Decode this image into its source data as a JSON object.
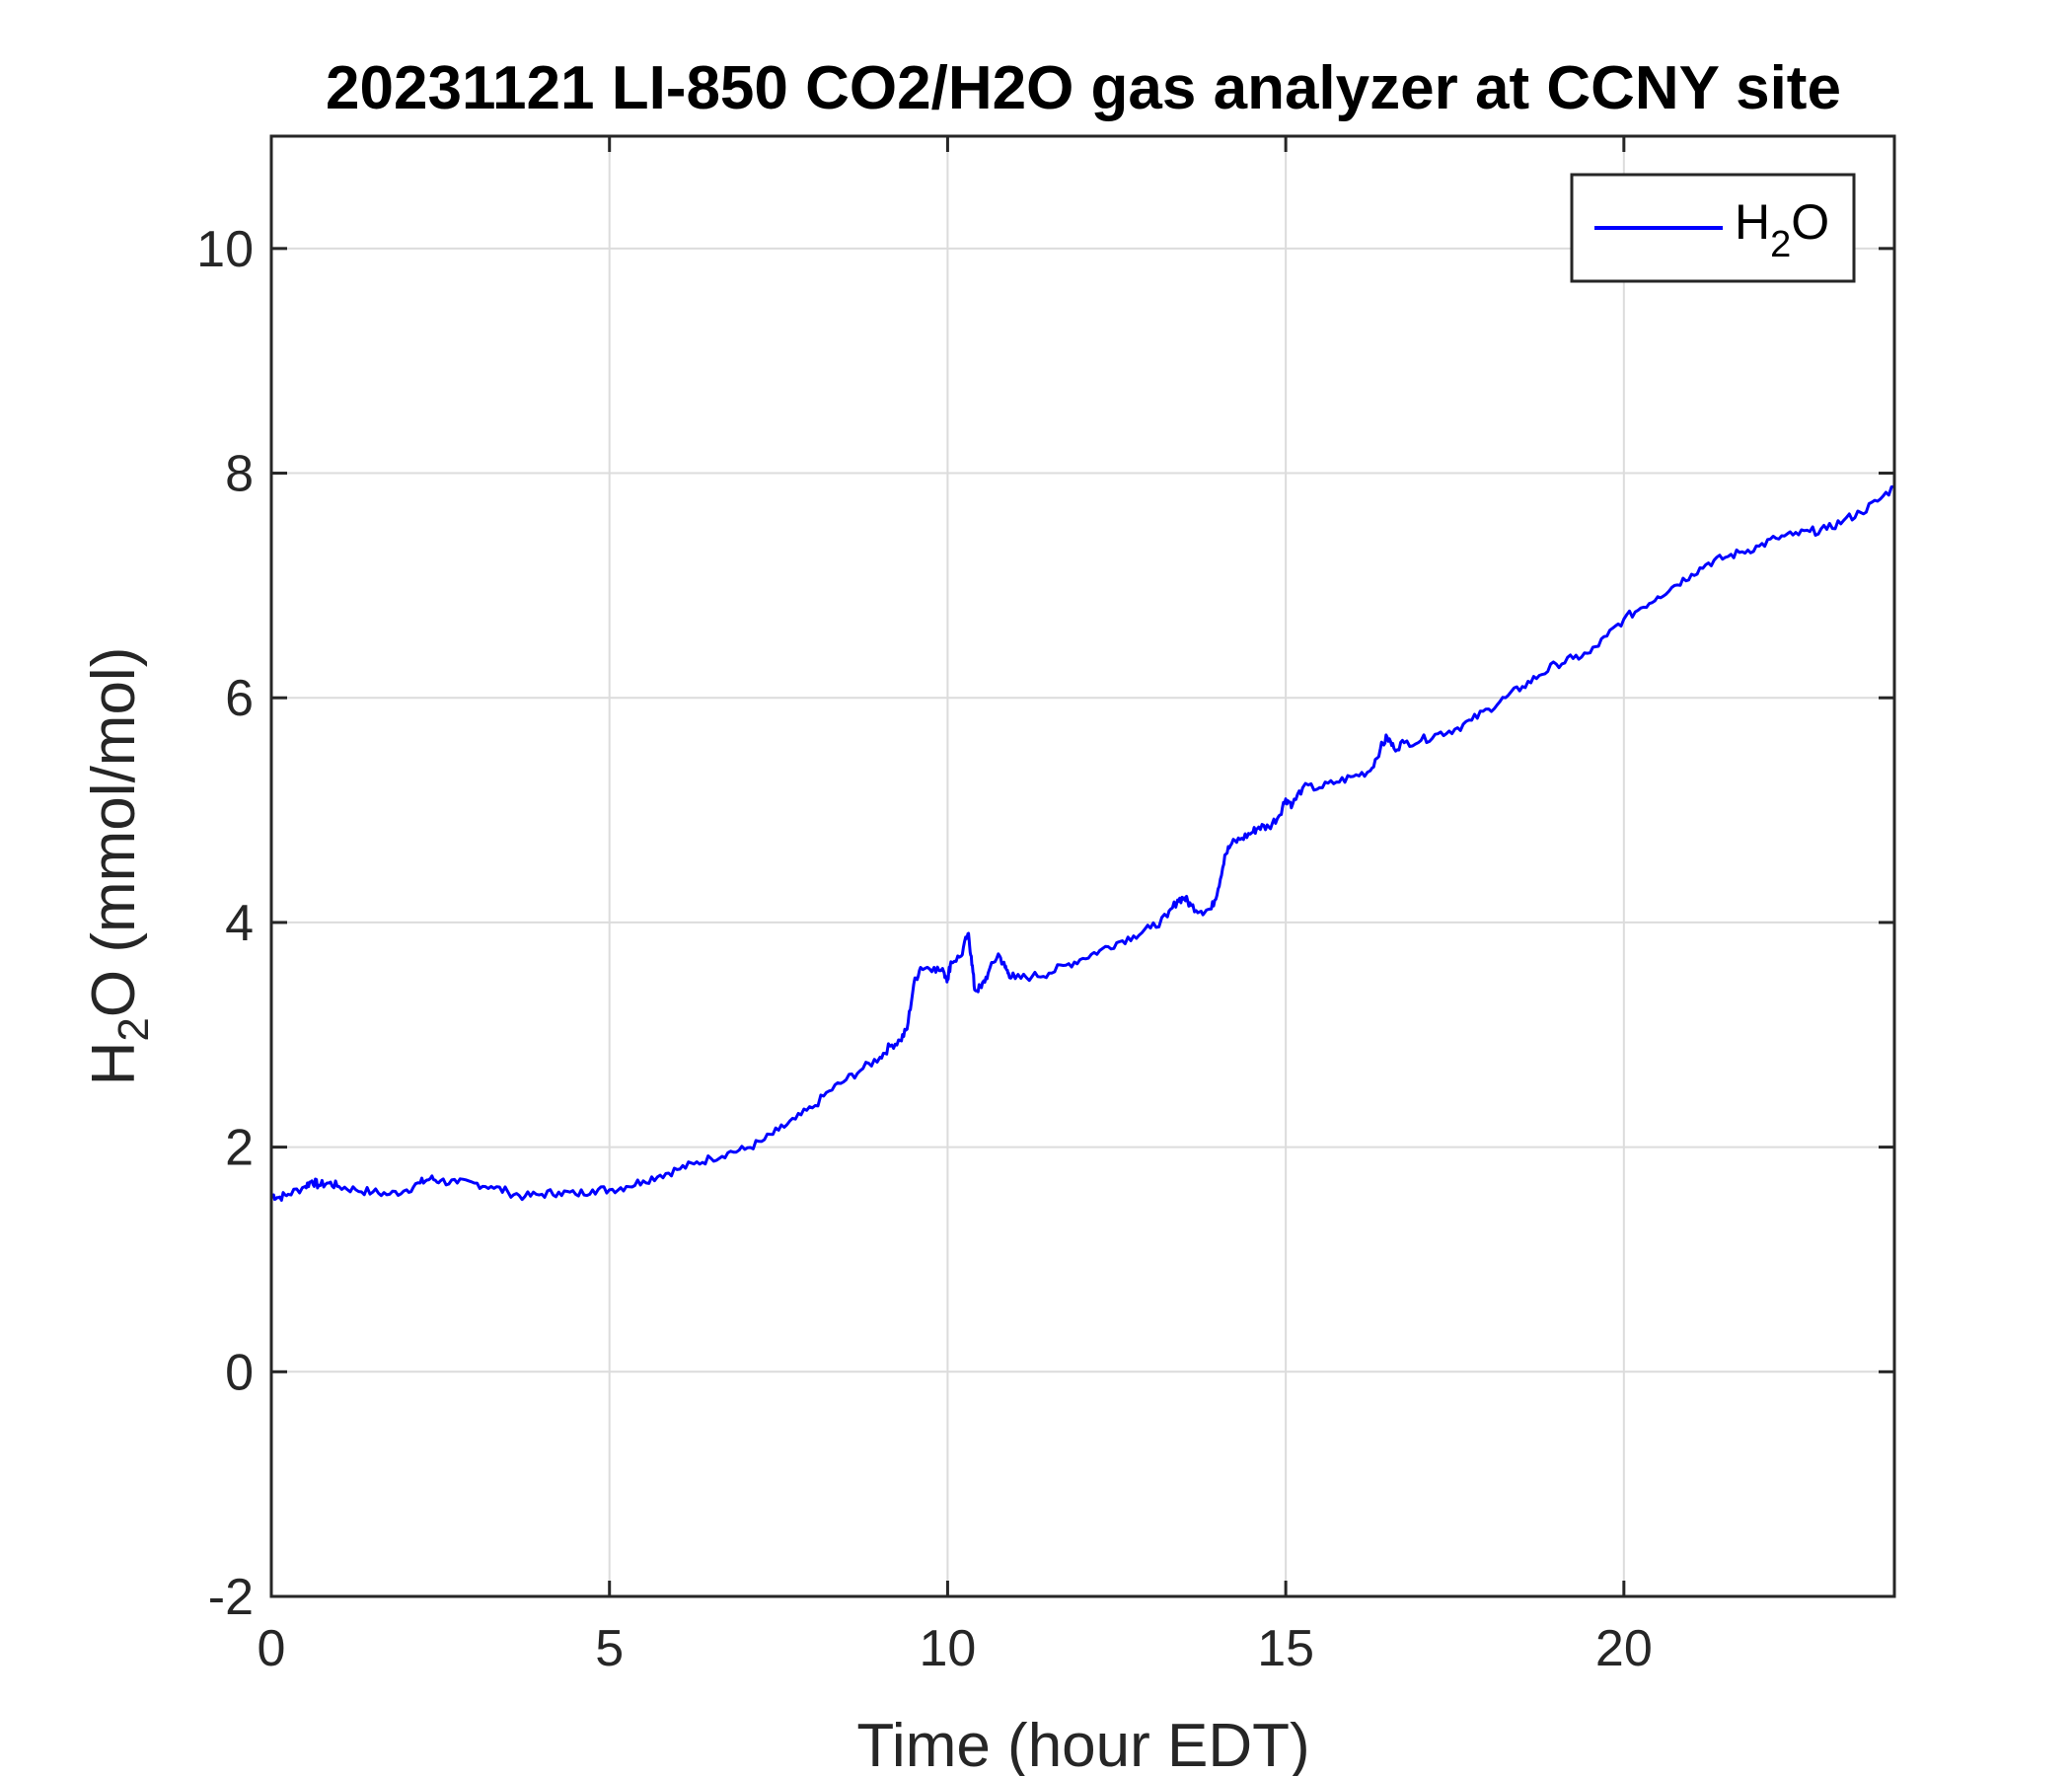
{
  "chart_data": {
    "type": "line",
    "title": "20231121 LI-850 CO2/H2O gas analyzer at CCNY site",
    "xlabel": "Time (hour EDT)",
    "ylabel": {
      "main": "H",
      "sub": "2",
      "rest": "O (mmol/mol)"
    },
    "xlim": [
      0,
      24
    ],
    "ylim": [
      -2,
      11
    ],
    "xticks": [
      "0",
      "5",
      "10",
      "15",
      "20"
    ],
    "yticks": [
      "-2",
      "0",
      "2",
      "4",
      "6",
      "8",
      "10"
    ],
    "grid": true,
    "legend_position": "top-right",
    "series": [
      {
        "name": {
          "main": "H",
          "sub": "2",
          "rest": "O"
        },
        "color": "#0000ff",
        "x": [
          0,
          0.1,
          0.25,
          0.5,
          0.6,
          0.7,
          0.85,
          1.0,
          1.25,
          1.5,
          1.75,
          2.0,
          2.2,
          2.35,
          2.5,
          2.75,
          3.0,
          3.25,
          3.5,
          3.75,
          4.0,
          4.25,
          4.5,
          4.75,
          5.0,
          5.25,
          5.5,
          5.75,
          6.0,
          6.25,
          6.5,
          6.75,
          7.0,
          7.25,
          7.5,
          7.75,
          8.0,
          8.25,
          8.5,
          8.75,
          9.0,
          9.15,
          9.3,
          9.4,
          9.5,
          9.6,
          9.8,
          9.95,
          10.0,
          10.05,
          10.2,
          10.3,
          10.35,
          10.4,
          10.5,
          10.6,
          10.75,
          10.85,
          10.9,
          11.0,
          11.25,
          11.5,
          11.75,
          12.0,
          12.25,
          12.5,
          12.75,
          13.0,
          13.25,
          13.4,
          13.5,
          13.6,
          13.75,
          13.9,
          14.0,
          14.1,
          14.2,
          14.35,
          14.5,
          14.6,
          14.75,
          14.9,
          15.0,
          15.1,
          15.25,
          15.5,
          15.75,
          16.0,
          16.25,
          16.4,
          16.5,
          16.6,
          16.75,
          17.0,
          17.25,
          17.5,
          17.75,
          18.0,
          18.25,
          18.5,
          18.75,
          19.0,
          19.25,
          19.5,
          19.75,
          20.0,
          20.25,
          20.5,
          20.75,
          21.0,
          21.25,
          21.5,
          21.75,
          22.0,
          22.25,
          22.5,
          22.75,
          23.0,
          23.25,
          23.5,
          23.75,
          24.0
        ],
        "y": [
          1.58,
          1.55,
          1.58,
          1.65,
          1.7,
          1.66,
          1.68,
          1.65,
          1.62,
          1.6,
          1.58,
          1.62,
          1.68,
          1.72,
          1.7,
          1.68,
          1.68,
          1.65,
          1.6,
          1.56,
          1.58,
          1.6,
          1.58,
          1.62,
          1.62,
          1.65,
          1.7,
          1.75,
          1.8,
          1.85,
          1.9,
          1.95,
          1.98,
          2.05,
          2.15,
          2.25,
          2.35,
          2.5,
          2.6,
          2.7,
          2.8,
          2.9,
          2.95,
          3.05,
          3.45,
          3.6,
          3.6,
          3.55,
          3.5,
          3.65,
          3.7,
          3.9,
          3.7,
          3.4,
          3.42,
          3.55,
          3.72,
          3.6,
          3.55,
          3.5,
          3.52,
          3.55,
          3.62,
          3.68,
          3.75,
          3.82,
          3.88,
          3.95,
          4.05,
          4.2,
          4.22,
          4.15,
          4.1,
          4.12,
          4.3,
          4.6,
          4.7,
          4.75,
          4.8,
          4.85,
          4.85,
          4.95,
          5.1,
          5.05,
          5.2,
          5.2,
          5.25,
          5.3,
          5.35,
          5.55,
          5.65,
          5.55,
          5.6,
          5.62,
          5.68,
          5.72,
          5.8,
          5.9,
          6.0,
          6.1,
          6.2,
          6.3,
          6.35,
          6.4,
          6.55,
          6.7,
          6.8,
          6.9,
          7.0,
          7.1,
          7.2,
          7.25,
          7.3,
          7.35,
          7.42,
          7.45,
          7.48,
          7.5,
          7.58,
          7.65,
          7.75,
          7.88
        ]
      }
    ]
  }
}
